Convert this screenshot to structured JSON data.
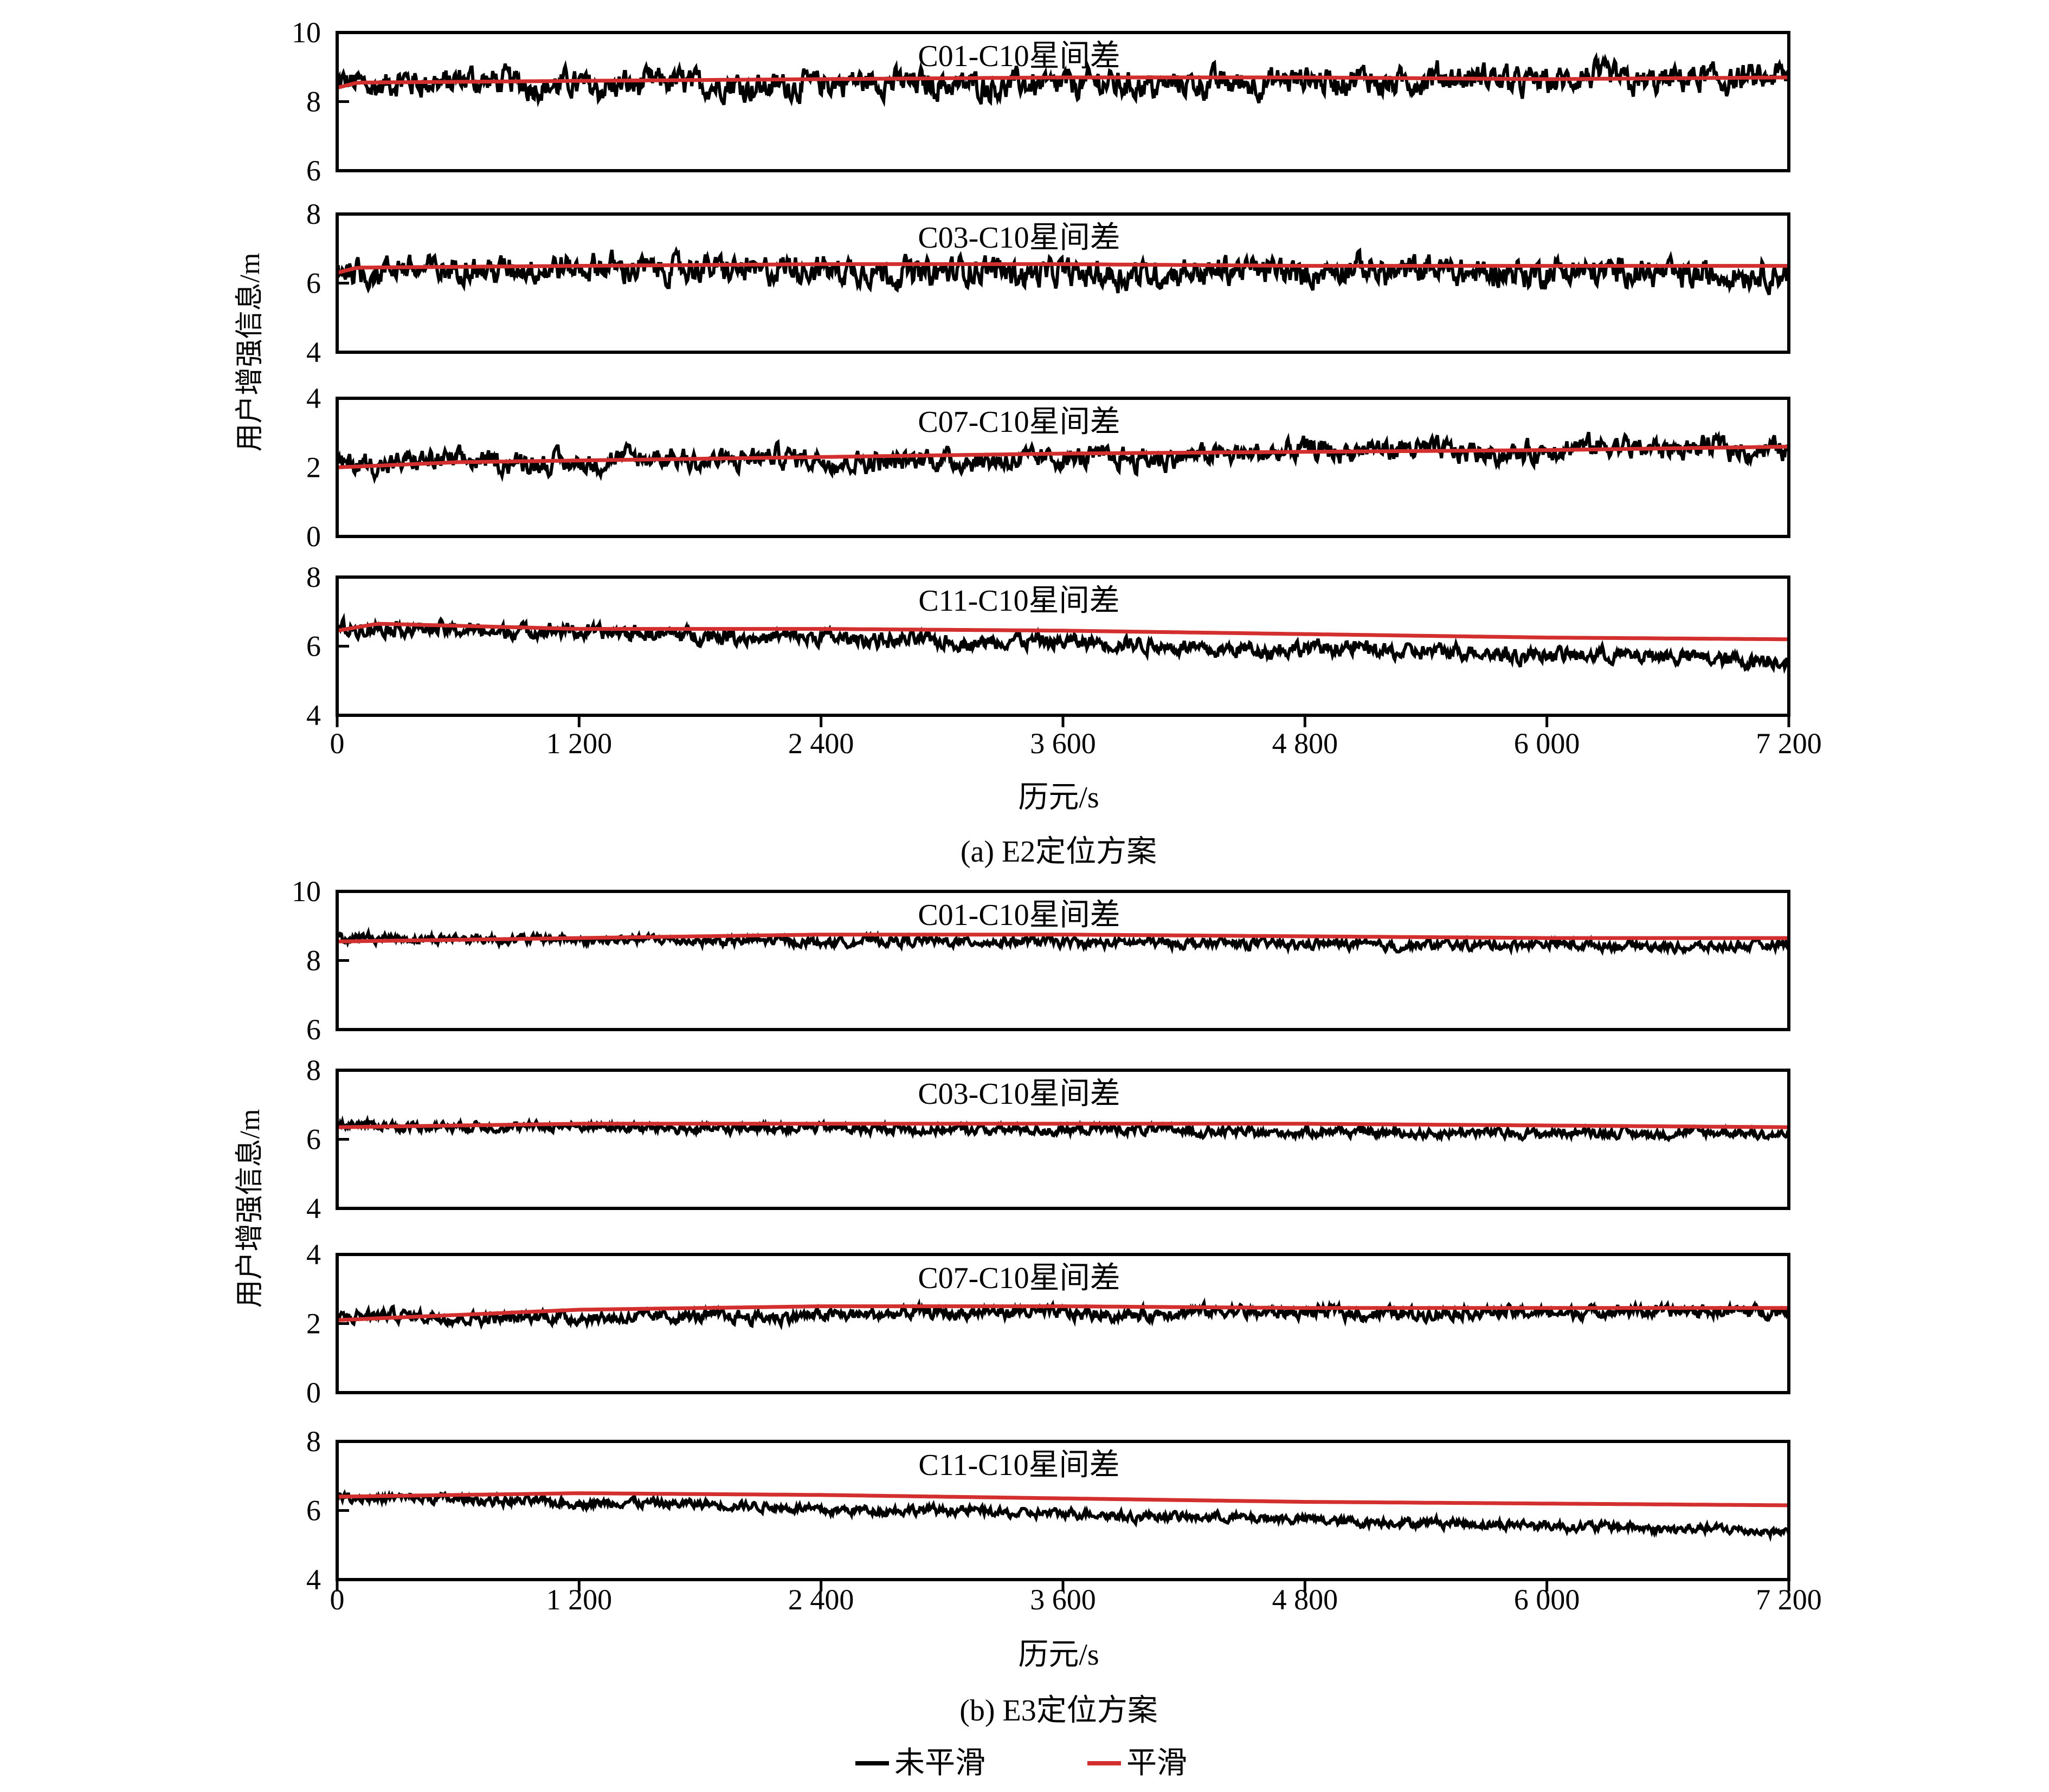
{
  "figure": {
    "legend": [
      {
        "label": "未平滑",
        "color": "#000000"
      },
      {
        "label": "平滑",
        "color": "#d32f2f"
      }
    ]
  },
  "chart_data": [
    {
      "type": "line",
      "caption": "(a) E2定位方案",
      "xlabel": "历元/s",
      "ylabel": "用户增强信息/m",
      "xlim": [
        0,
        7200
      ],
      "xticks": [
        0,
        1200,
        2400,
        3600,
        4800,
        6000,
        7200
      ],
      "xtick_labels": [
        "0",
        "1 200",
        "2 400",
        "3 600",
        "4 800",
        "6 000",
        "7 200"
      ],
      "panels": [
        {
          "title": "C01-C10星间差",
          "ylim": [
            6,
            10
          ],
          "yticks": [
            6,
            8,
            10
          ],
          "series": [
            {
              "name": "未平滑",
              "color": "#000000",
              "mean_start": 8.5,
              "mean_end": 8.6,
              "noise_amplitude": 0.45
            },
            {
              "name": "平滑",
              "color": "#d32f2f",
              "x": [
                0,
                100,
                1200,
                2400,
                3600,
                4800,
                6000,
                7200
              ],
              "values": [
                8.4,
                8.55,
                8.6,
                8.65,
                8.7,
                8.7,
                8.65,
                8.7
              ]
            }
          ]
        },
        {
          "title": "C03-C10星间差",
          "ylim": [
            4,
            8
          ],
          "yticks": [
            4,
            6,
            8
          ],
          "series": [
            {
              "name": "未平滑",
              "color": "#000000",
              "mean_start": 6.4,
              "mean_end": 6.3,
              "noise_amplitude": 0.45
            },
            {
              "name": "平滑",
              "color": "#d32f2f",
              "x": [
                0,
                100,
                1200,
                2400,
                3600,
                4800,
                6000,
                7200
              ],
              "values": [
                6.3,
                6.45,
                6.5,
                6.55,
                6.55,
                6.5,
                6.5,
                6.5
              ]
            }
          ]
        },
        {
          "title": "C07-C10星间差",
          "ylim": [
            0,
            4
          ],
          "yticks": [
            0,
            2,
            4
          ],
          "series": [
            {
              "name": "未平滑",
              "color": "#000000",
              "mean_start": 2.1,
              "mean_end": 2.55,
              "noise_amplitude": 0.35
            },
            {
              "name": "平滑",
              "color": "#d32f2f",
              "x": [
                0,
                600,
                1200,
                2400,
                3600,
                4800,
                6000,
                7200
              ],
              "values": [
                2.0,
                2.15,
                2.2,
                2.3,
                2.4,
                2.45,
                2.5,
                2.6
              ]
            }
          ]
        },
        {
          "title": "C11-C10星间差",
          "ylim": [
            4,
            8
          ],
          "yticks": [
            4,
            6,
            8
          ],
          "series": [
            {
              "name": "未平滑",
              "color": "#000000",
              "mean_start": 6.55,
              "mean_end": 5.6,
              "noise_amplitude": 0.25
            },
            {
              "name": "平滑",
              "color": "#d32f2f",
              "x": [
                0,
                200,
                1200,
                2400,
                3600,
                4800,
                6000,
                7200
              ],
              "values": [
                6.45,
                6.65,
                6.5,
                6.5,
                6.45,
                6.35,
                6.25,
                6.2
              ]
            }
          ]
        }
      ]
    },
    {
      "type": "line",
      "caption": "(b) E3定位方案",
      "xlabel": "历元/s",
      "ylabel": "用户增强信息/m",
      "xlim": [
        0,
        7200
      ],
      "xticks": [
        0,
        1200,
        2400,
        3600,
        4800,
        6000,
        7200
      ],
      "xtick_labels": [
        "0",
        "1 200",
        "2 400",
        "3 600",
        "4 800",
        "6 000",
        "7 200"
      ],
      "panels": [
        {
          "title": "C01-C10星间差",
          "ylim": [
            6,
            10
          ],
          "yticks": [
            6,
            8,
            10
          ],
          "series": [
            {
              "name": "未平滑",
              "color": "#000000",
              "mean_start": 8.65,
              "mean_end": 8.4,
              "noise_amplitude": 0.15
            },
            {
              "name": "平滑",
              "color": "#d32f2f",
              "x": [
                0,
                1200,
                2400,
                3600,
                4800,
                6000,
                7200
              ],
              "values": [
                8.55,
                8.65,
                8.75,
                8.75,
                8.7,
                8.65,
                8.65
              ]
            }
          ]
        },
        {
          "title": "C03-C10星间差",
          "ylim": [
            4,
            8
          ],
          "yticks": [
            4,
            6,
            8
          ],
          "series": [
            {
              "name": "未平滑",
              "color": "#000000",
              "mean_start": 6.4,
              "mean_end": 6.15,
              "noise_amplitude": 0.15
            },
            {
              "name": "平滑",
              "color": "#d32f2f",
              "x": [
                0,
                1200,
                2400,
                3600,
                4800,
                6000,
                7200
              ],
              "values": [
                6.35,
                6.45,
                6.45,
                6.45,
                6.45,
                6.4,
                6.35
              ]
            }
          ]
        },
        {
          "title": "C07-C10星间差",
          "ylim": [
            0,
            4
          ],
          "yticks": [
            0,
            2,
            4
          ],
          "series": [
            {
              "name": "未平滑",
              "color": "#000000",
              "mean_start": 2.2,
              "mean_end": 2.35,
              "noise_amplitude": 0.2
            },
            {
              "name": "平滑",
              "color": "#d32f2f",
              "x": [
                0,
                1200,
                2400,
                3600,
                4800,
                6000,
                7200
              ],
              "values": [
                2.1,
                2.4,
                2.5,
                2.5,
                2.45,
                2.45,
                2.45
              ]
            }
          ]
        },
        {
          "title": "C11-C10星间差",
          "ylim": [
            4,
            8
          ],
          "yticks": [
            4,
            6,
            8
          ],
          "series": [
            {
              "name": "未平滑",
              "color": "#000000",
              "mean_start": 6.4,
              "mean_end": 5.4,
              "noise_amplitude": 0.15
            },
            {
              "name": "平滑",
              "color": "#d32f2f",
              "x": [
                0,
                1200,
                2400,
                3600,
                4800,
                6000,
                7200
              ],
              "values": [
                6.4,
                6.5,
                6.45,
                6.35,
                6.25,
                6.2,
                6.15
              ]
            }
          ]
        }
      ]
    }
  ]
}
